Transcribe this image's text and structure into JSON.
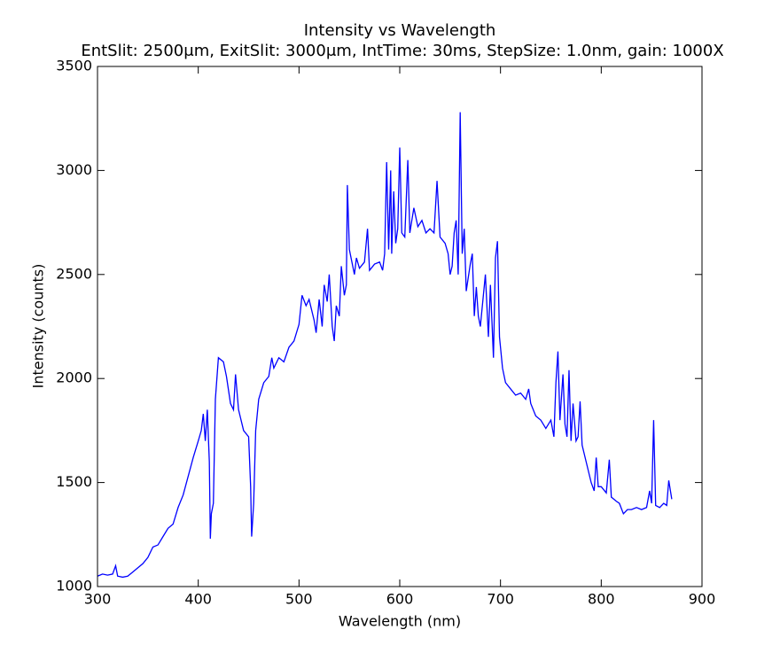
{
  "chart_data": {
    "type": "line",
    "title": "Intensity vs Wavelength",
    "subtitle": "EntSlit: 2500μm, ExitSlit: 3000μm, IntTime: 30ms, StepSize: 1.0nm, gain: 1000X",
    "x_label": "Wavelength (nm)",
    "y_label": "Intensity (counts)",
    "xlim": [
      300,
      900
    ],
    "xticks": [
      300,
      400,
      500,
      600,
      700,
      800,
      900
    ],
    "ylim": [
      1000,
      3500
    ],
    "yticks": [
      1000,
      1500,
      2000,
      2500,
      3000,
      3500
    ],
    "color": "#0000ff",
    "x": [
      300,
      305,
      310,
      315,
      318,
      320,
      325,
      330,
      335,
      340,
      345,
      350,
      355,
      360,
      365,
      370,
      375,
      380,
      385,
      390,
      395,
      400,
      403,
      405,
      407,
      409,
      411,
      412,
      413,
      415,
      417,
      420,
      425,
      428,
      432,
      435,
      437,
      440,
      445,
      450,
      452,
      453,
      455,
      457,
      460,
      465,
      470,
      473,
      475,
      480,
      485,
      490,
      495,
      500,
      503,
      507,
      510,
      515,
      517,
      520,
      523,
      525,
      528,
      530,
      533,
      535,
      537,
      540,
      542,
      545,
      547,
      548,
      550,
      555,
      557,
      560,
      565,
      568,
      570,
      575,
      580,
      583,
      585,
      587,
      589,
      591,
      592,
      594,
      596,
      598,
      600,
      602,
      605,
      608,
      610,
      614,
      618,
      622,
      626,
      630,
      634,
      637,
      640,
      645,
      648,
      650,
      652,
      654,
      656,
      658,
      660,
      662,
      664,
      666,
      670,
      672,
      674,
      676,
      678,
      680,
      685,
      688,
      690,
      693,
      695,
      697,
      699,
      702,
      705,
      710,
      715,
      720,
      725,
      728,
      730,
      735,
      740,
      745,
      750,
      753,
      755,
      757,
      759,
      762,
      764,
      766,
      768,
      770,
      772,
      775,
      777,
      779,
      781,
      785,
      790,
      793,
      795,
      797,
      800,
      805,
      808,
      810,
      815,
      818,
      822,
      826,
      830,
      835,
      840,
      845,
      848,
      850,
      852,
      854,
      858,
      862,
      865,
      867,
      870
    ],
    "values": [
      1050,
      1060,
      1055,
      1060,
      1100,
      1050,
      1045,
      1050,
      1070,
      1090,
      1110,
      1140,
      1190,
      1200,
      1240,
      1280,
      1300,
      1380,
      1440,
      1530,
      1620,
      1700,
      1750,
      1830,
      1700,
      1850,
      1600,
      1230,
      1350,
      1400,
      1900,
      2100,
      2080,
      2010,
      1880,
      1850,
      2020,
      1850,
      1750,
      1720,
      1480,
      1240,
      1400,
      1750,
      1900,
      1980,
      2010,
      2100,
      2050,
      2100,
      2080,
      2150,
      2180,
      2260,
      2400,
      2350,
      2380,
      2280,
      2220,
      2380,
      2250,
      2450,
      2370,
      2500,
      2250,
      2180,
      2350,
      2300,
      2540,
      2400,
      2450,
      2930,
      2620,
      2500,
      2580,
      2530,
      2560,
      2720,
      2520,
      2550,
      2560,
      2520,
      2600,
      3040,
      2620,
      3000,
      2600,
      2900,
      2650,
      2720,
      3110,
      2700,
      2680,
      3050,
      2700,
      2820,
      2730,
      2760,
      2700,
      2720,
      2700,
      2950,
      2680,
      2650,
      2600,
      2500,
      2540,
      2700,
      2760,
      2500,
      3280,
      2600,
      2720,
      2420,
      2550,
      2600,
      2300,
      2440,
      2300,
      2250,
      2500,
      2200,
      2450,
      2100,
      2580,
      2660,
      2200,
      2050,
      1980,
      1950,
      1920,
      1930,
      1900,
      1950,
      1880,
      1820,
      1800,
      1760,
      1800,
      1720,
      1980,
      2130,
      1800,
      2020,
      1780,
      1720,
      2040,
      1700,
      1880,
      1700,
      1720,
      1890,
      1680,
      1600,
      1500,
      1460,
      1620,
      1480,
      1480,
      1450,
      1610,
      1430,
      1410,
      1400,
      1350,
      1370,
      1370,
      1380,
      1370,
      1380,
      1460,
      1400,
      1800,
      1390,
      1380,
      1400,
      1390,
      1510,
      1420
    ]
  }
}
